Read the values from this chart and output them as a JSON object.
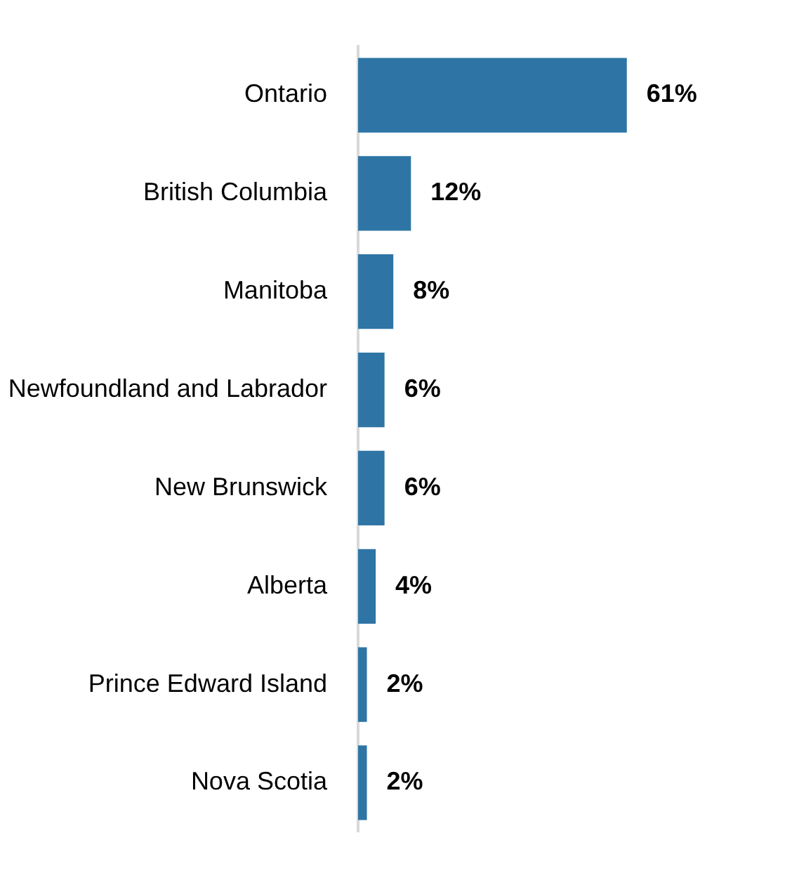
{
  "chart_data": {
    "type": "bar",
    "orientation": "horizontal",
    "categories": [
      "Ontario",
      "British Columbia",
      "Manitoba",
      "Newfoundland and Labrador",
      "New Brunswick",
      "Alberta",
      "Prince Edward Island",
      "Nova Scotia"
    ],
    "values": [
      61,
      12,
      8,
      6,
      6,
      4,
      2,
      2
    ],
    "value_labels": [
      "61%",
      "12%",
      "8%",
      "6%",
      "6%",
      "4%",
      "2%",
      "2%"
    ],
    "color": "#2e75a6",
    "legend": false
  }
}
